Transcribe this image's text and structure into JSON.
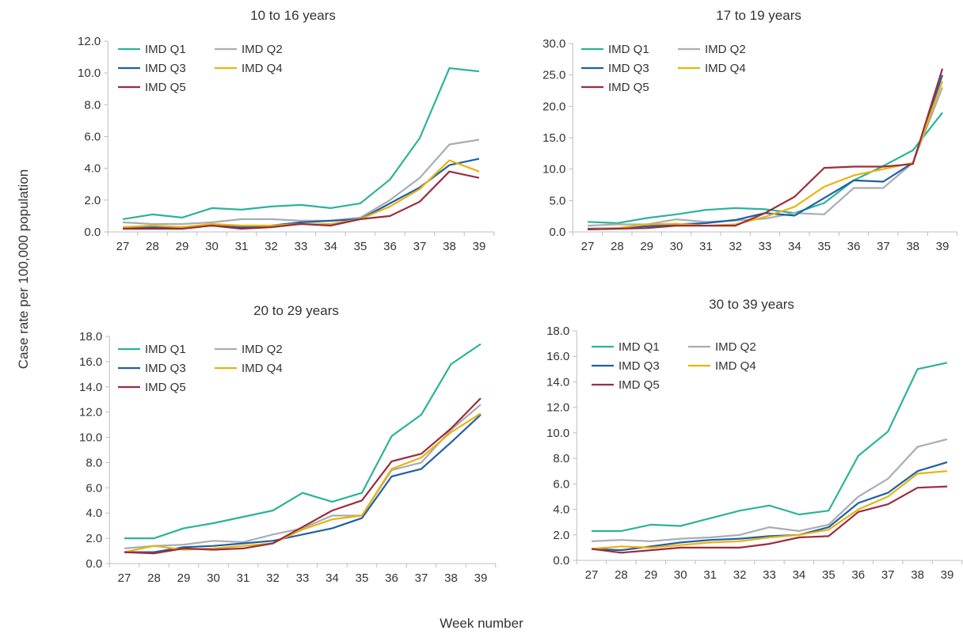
{
  "figure": {
    "y_axis_label": "Case rate per 100,000 population",
    "x_axis_label": "Week number"
  },
  "series_colors": {
    "IMD Q1": "#2bb39a",
    "IMD Q2": "#a8adb5",
    "IMD Q3": "#1f5fa8",
    "IMD Q4": "#e8b30e",
    "IMD Q5": "#9b2d3e"
  },
  "chart_data": [
    {
      "type": "line",
      "title": "10 to 16 years",
      "xlabel": "Week number",
      "ylabel": "Case rate per 100,000 population",
      "x": [
        27,
        28,
        29,
        30,
        31,
        32,
        33,
        34,
        35,
        36,
        37,
        38,
        39
      ],
      "ylim": [
        0,
        12
      ],
      "yticks": [
        "0.0",
        "2.0",
        "4.0",
        "6.0",
        "8.0",
        "10.0",
        "12.0"
      ],
      "grid": false,
      "legend": "top-left",
      "series": [
        {
          "name": "IMD Q1",
          "values": [
            0.8,
            1.1,
            0.9,
            1.5,
            1.4,
            1.6,
            1.7,
            1.5,
            1.8,
            3.3,
            5.9,
            10.3,
            10.1
          ]
        },
        {
          "name": "IMD Q2",
          "values": [
            0.6,
            0.5,
            0.5,
            0.6,
            0.8,
            0.8,
            0.7,
            0.7,
            0.9,
            2.0,
            3.4,
            5.5,
            5.8
          ]
        },
        {
          "name": "IMD Q3",
          "values": [
            0.3,
            0.3,
            0.3,
            0.4,
            0.3,
            0.4,
            0.6,
            0.7,
            0.8,
            1.8,
            2.8,
            4.2,
            4.6
          ]
        },
        {
          "name": "IMD Q4",
          "values": [
            0.3,
            0.4,
            0.3,
            0.5,
            0.4,
            0.4,
            0.5,
            0.5,
            0.8,
            1.6,
            2.7,
            4.5,
            3.8
          ]
        },
        {
          "name": "IMD Q5",
          "values": [
            0.2,
            0.2,
            0.2,
            0.4,
            0.2,
            0.3,
            0.5,
            0.4,
            0.8,
            1.0,
            1.9,
            3.8,
            3.4
          ]
        }
      ]
    },
    {
      "type": "line",
      "title": "17 to 19 years",
      "xlabel": "Week number",
      "ylabel": "Case rate per 100,000 population",
      "x": [
        27,
        28,
        29,
        30,
        31,
        32,
        33,
        34,
        35,
        36,
        37,
        38,
        39
      ],
      "ylim": [
        0,
        30
      ],
      "yticks": [
        "0.0",
        "5.0",
        "10.0",
        "15.0",
        "20.0",
        "25.0",
        "30.0"
      ],
      "grid": false,
      "legend": "top-left",
      "series": [
        {
          "name": "IMD Q1",
          "values": [
            1.6,
            1.4,
            2.2,
            2.8,
            3.5,
            3.8,
            3.6,
            3.0,
            4.6,
            8.2,
            10.5,
            13.0,
            19.0
          ]
        },
        {
          "name": "IMD Q2",
          "values": [
            1.0,
            1.2,
            1.2,
            2.0,
            1.6,
            1.8,
            2.1,
            3.0,
            2.8,
            7.0,
            7.0,
            11.0,
            23.0
          ]
        },
        {
          "name": "IMD Q3",
          "values": [
            0.5,
            0.6,
            0.9,
            1.2,
            1.4,
            1.9,
            3.0,
            2.6,
            5.4,
            8.2,
            8.0,
            11.0,
            25.0
          ]
        },
        {
          "name": "IMD Q4",
          "values": [
            0.4,
            0.6,
            1.2,
            1.3,
            1.0,
            1.2,
            2.4,
            4.0,
            7.2,
            9.0,
            10.0,
            11.0,
            24.0
          ]
        },
        {
          "name": "IMD Q5",
          "values": [
            0.4,
            0.5,
            0.6,
            1.0,
            1.0,
            1.0,
            3.0,
            5.6,
            10.2,
            10.4,
            10.4,
            10.8,
            26.0
          ]
        }
      ]
    },
    {
      "type": "line",
      "title": "20 to 29 years",
      "xlabel": "Week number",
      "ylabel": "Case rate per 100,000 population",
      "x": [
        27,
        28,
        29,
        30,
        31,
        32,
        33,
        34,
        35,
        36,
        37,
        38,
        39
      ],
      "ylim": [
        0,
        18
      ],
      "yticks": [
        "0.0",
        "2.0",
        "4.0",
        "6.0",
        "8.0",
        "10.0",
        "12.0",
        "14.0",
        "16.0",
        "18.0"
      ],
      "grid": false,
      "legend": "top-left",
      "series": [
        {
          "name": "IMD Q1",
          "values": [
            2.0,
            2.0,
            2.8,
            3.2,
            3.7,
            4.2,
            5.6,
            4.9,
            5.6,
            10.1,
            11.8,
            15.8,
            17.4
          ]
        },
        {
          "name": "IMD Q2",
          "values": [
            1.2,
            1.4,
            1.5,
            1.8,
            1.7,
            2.3,
            2.8,
            3.8,
            3.8,
            7.4,
            8.0,
            10.6,
            12.6
          ]
        },
        {
          "name": "IMD Q3",
          "values": [
            0.9,
            0.9,
            1.3,
            1.4,
            1.6,
            1.8,
            2.3,
            2.8,
            3.6,
            6.9,
            7.5,
            9.6,
            11.8
          ]
        },
        {
          "name": "IMD Q4",
          "values": [
            0.9,
            1.4,
            1.1,
            1.2,
            1.4,
            1.6,
            2.7,
            3.5,
            3.8,
            7.5,
            8.4,
            10.4,
            11.9
          ]
        },
        {
          "name": "IMD Q5",
          "values": [
            0.9,
            0.8,
            1.2,
            1.1,
            1.2,
            1.6,
            2.9,
            4.2,
            5.0,
            8.1,
            8.7,
            10.7,
            13.1
          ]
        }
      ]
    },
    {
      "type": "line",
      "title": "30 to 39 years",
      "xlabel": "Week number",
      "ylabel": "Case rate per 100,000 population",
      "x": [
        27,
        28,
        29,
        30,
        31,
        32,
        33,
        34,
        35,
        36,
        37,
        38,
        39
      ],
      "ylim": [
        0,
        18
      ],
      "yticks": [
        "0.0",
        "2.0",
        "4.0",
        "6.0",
        "8.0",
        "10.0",
        "12.0",
        "14.0",
        "16.0",
        "18.0"
      ],
      "grid": false,
      "legend": "top-left",
      "series": [
        {
          "name": "IMD Q1",
          "values": [
            2.3,
            2.3,
            2.8,
            2.7,
            3.3,
            3.9,
            4.3,
            3.6,
            3.9,
            8.2,
            10.1,
            15.0,
            15.5
          ]
        },
        {
          "name": "IMD Q2",
          "values": [
            1.5,
            1.6,
            1.5,
            1.7,
            1.8,
            2.0,
            2.6,
            2.3,
            2.8,
            5.0,
            6.4,
            8.9,
            9.5
          ]
        },
        {
          "name": "IMD Q3",
          "values": [
            0.9,
            0.8,
            1.1,
            1.4,
            1.6,
            1.7,
            1.9,
            2.0,
            2.6,
            4.5,
            5.3,
            7.0,
            7.7
          ]
        },
        {
          "name": "IMD Q4",
          "values": [
            0.9,
            1.1,
            1.0,
            1.2,
            1.4,
            1.5,
            1.8,
            2.0,
            2.4,
            4.0,
            5.0,
            6.8,
            7.0
          ]
        },
        {
          "name": "IMD Q5",
          "values": [
            0.9,
            0.6,
            0.8,
            1.0,
            1.0,
            1.0,
            1.3,
            1.8,
            1.9,
            3.8,
            4.4,
            5.7,
            5.8
          ]
        }
      ]
    }
  ]
}
